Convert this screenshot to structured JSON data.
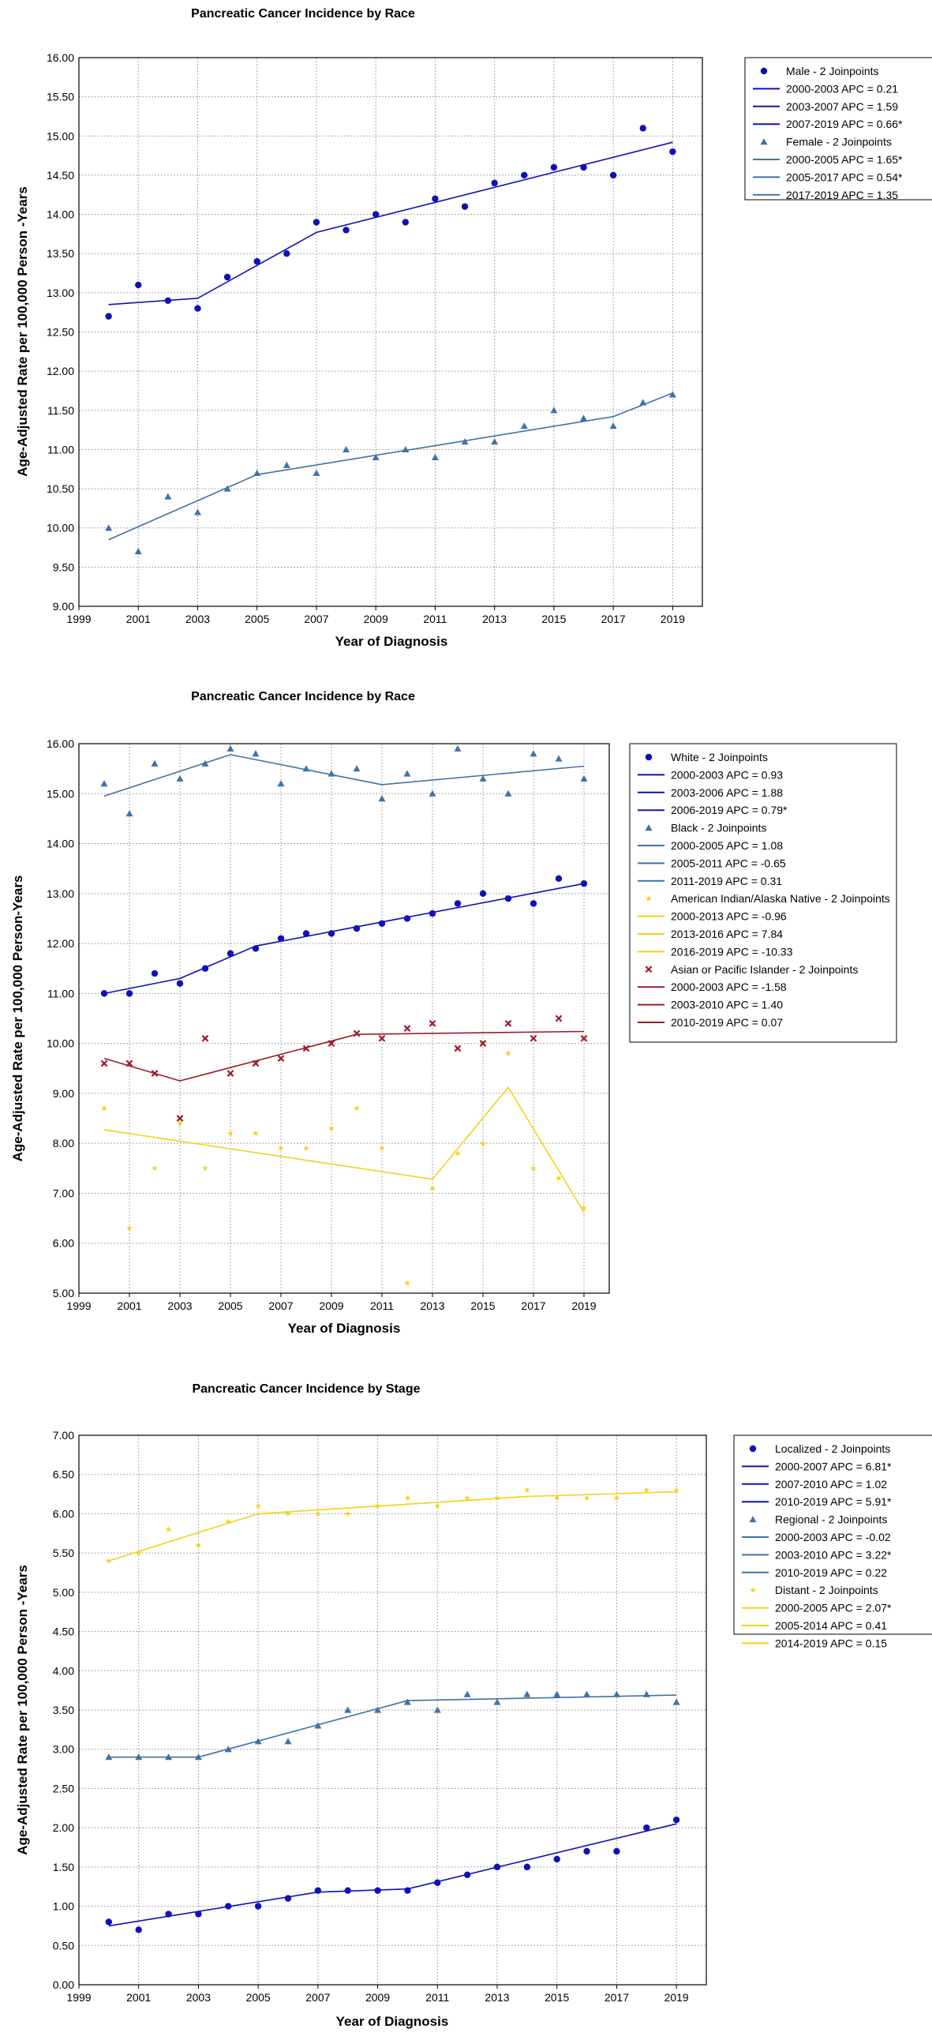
{
  "colors": {
    "navy": "#1010b8",
    "steel": "#3f72a6",
    "gold": "#f2d21b",
    "maroon": "#9b1c2a",
    "grid": "#a8a8a8",
    "axis": "#000000"
  },
  "chart_data": [
    {
      "type": "scatter",
      "title": "Pancreatic Cancer Incidence by Race",
      "xlabel": "Year of Diagnosis",
      "ylabel": "Age-Adjusted Rate per 100,000 Person -Years",
      "xlim": [
        1999,
        2020
      ],
      "ylim": [
        9.0,
        16.0
      ],
      "x_ticks": [
        "1999",
        "2001",
        "2003",
        "2005",
        "2007",
        "2009",
        "2011",
        "2013",
        "2015",
        "2017",
        "2019"
      ],
      "y_ticks": [
        "9.00",
        "9.50",
        "10.00",
        "10.50",
        "11.00",
        "11.50",
        "12.00",
        "12.50",
        "13.00",
        "13.50",
        "14.00",
        "14.50",
        "15.00",
        "15.50",
        "16.00"
      ],
      "grid": true,
      "legend_position": "right",
      "series": [
        {
          "name": "Male - 2 Joinpoints",
          "marker": "circle",
          "color": "#1010b8",
          "x": [
            2000,
            2001,
            2002,
            2003,
            2004,
            2005,
            2006,
            2007,
            2008,
            2009,
            2010,
            2011,
            2012,
            2013,
            2014,
            2015,
            2016,
            2017,
            2018,
            2019
          ],
          "y": [
            12.7,
            13.1,
            12.9,
            12.8,
            13.2,
            13.4,
            13.5,
            13.9,
            13.8,
            14.0,
            13.9,
            14.2,
            14.1,
            14.4,
            14.5,
            14.6,
            14.6,
            14.5,
            15.1,
            14.8
          ],
          "fit": {
            "x": [
              2000,
              2003,
              2007,
              2019
            ],
            "y": [
              12.85,
              12.93,
              13.77,
              14.92
            ]
          },
          "segments": [
            "2000-2003 APC = 0.21",
            "2003-2007 APC = 1.59",
            "2007-2019 APC = 0.66*"
          ]
        },
        {
          "name": "Female - 2 Joinpoints",
          "marker": "triangle",
          "color": "#3f72a6",
          "x": [
            2000,
            2001,
            2002,
            2003,
            2004,
            2005,
            2006,
            2007,
            2008,
            2009,
            2010,
            2011,
            2012,
            2013,
            2014,
            2015,
            2016,
            2017,
            2018,
            2019
          ],
          "y": [
            10.0,
            9.7,
            10.4,
            10.2,
            10.5,
            10.7,
            10.8,
            10.7,
            11.0,
            10.9,
            11.0,
            10.9,
            11.1,
            11.1,
            11.3,
            11.5,
            11.4,
            11.3,
            11.6,
            11.7
          ],
          "fit": {
            "x": [
              2000,
              2005,
              2017,
              2019
            ],
            "y": [
              9.85,
              10.68,
              11.42,
              11.72
            ]
          },
          "segments": [
            "2000-2005 APC = 1.65*",
            "2005-2017 APC = 0.54*",
            "2017-2019 APC = 1.35"
          ]
        }
      ]
    },
    {
      "type": "scatter",
      "title": "Pancreatic Cancer Incidence by Race",
      "xlabel": "Year of Diagnosis",
      "ylabel": "Age-Adjusted Rate per 100,000 Person-Years",
      "xlim": [
        1999,
        2020
      ],
      "ylim": [
        5.0,
        16.0
      ],
      "x_ticks": [
        "1999",
        "2001",
        "2003",
        "2005",
        "2007",
        "2009",
        "2011",
        "2013",
        "2015",
        "2017",
        "2019"
      ],
      "y_ticks": [
        "5.00",
        "6.00",
        "7.00",
        "8.00",
        "9.00",
        "10.00",
        "11.00",
        "12.00",
        "13.00",
        "14.00",
        "15.00",
        "16.00"
      ],
      "grid": true,
      "legend_position": "right",
      "series": [
        {
          "name": "White - 2 Joinpoints",
          "marker": "circle",
          "color": "#1010b8",
          "x": [
            2000,
            2001,
            2002,
            2003,
            2004,
            2005,
            2006,
            2007,
            2008,
            2009,
            2010,
            2011,
            2012,
            2013,
            2014,
            2015,
            2016,
            2017,
            2018,
            2019
          ],
          "y": [
            11.0,
            11.0,
            11.4,
            11.2,
            11.5,
            11.8,
            11.9,
            12.1,
            12.2,
            12.2,
            12.3,
            12.4,
            12.5,
            12.6,
            12.8,
            13.0,
            12.9,
            12.8,
            13.3,
            13.2
          ],
          "fit": {
            "x": [
              2000,
              2003,
              2006,
              2019
            ],
            "y": [
              11.0,
              11.3,
              11.95,
              13.2
            ]
          },
          "segments": [
            "2000-2003 APC = 0.93",
            "2003-2006 APC = 1.88",
            "2006-2019 APC = 0.79*"
          ]
        },
        {
          "name": "Black - 2 Joinpoints",
          "marker": "triangle",
          "color": "#3f72a6",
          "x": [
            2000,
            2001,
            2002,
            2003,
            2004,
            2005,
            2006,
            2007,
            2008,
            2009,
            2010,
            2011,
            2012,
            2013,
            2014,
            2015,
            2016,
            2017,
            2018,
            2019
          ],
          "y": [
            15.2,
            14.6,
            15.6,
            15.3,
            15.6,
            15.9,
            15.8,
            15.2,
            15.5,
            15.4,
            15.5,
            14.9,
            15.4,
            15.0,
            15.9,
            15.3,
            15.0,
            15.8,
            15.7,
            15.3
          ],
          "fit": {
            "x": [
              2000,
              2005,
              2011,
              2019
            ],
            "y": [
              14.95,
              15.78,
              15.18,
              15.55
            ]
          },
          "segments": [
            "2000-2005 APC = 1.08",
            "2005-2011 APC = -0.65",
            "2011-2019 APC = 0.31"
          ]
        },
        {
          "name": "American Indian/Alaska Native - 2 Joinpoints",
          "marker": "star",
          "color": "#f2d21b",
          "x": [
            2000,
            2001,
            2002,
            2003,
            2004,
            2005,
            2006,
            2007,
            2008,
            2009,
            2010,
            2011,
            2012,
            2013,
            2014,
            2015,
            2016,
            2017,
            2018,
            2019
          ],
          "y": [
            8.7,
            6.3,
            7.5,
            8.4,
            7.5,
            8.2,
            8.2,
            7.9,
            7.9,
            8.3,
            8.7,
            7.9,
            5.2,
            7.1,
            7.8,
            8.0,
            9.8,
            7.5,
            7.3,
            6.7
          ],
          "fit": {
            "x": [
              2000,
              2013,
              2016,
              2019
            ],
            "y": [
              8.27,
              7.28,
              9.12,
              6.62
            ]
          },
          "segments": [
            "2000-2013 APC = -0.96",
            "2013-2016 APC = 7.84",
            "2016-2019 APC = -10.33"
          ]
        },
        {
          "name": "Asian or Pacific Islander - 2 Joinpoints",
          "marker": "x",
          "color": "#9b1c2a",
          "x": [
            2000,
            2001,
            2002,
            2003,
            2004,
            2005,
            2006,
            2007,
            2008,
            2009,
            2010,
            2011,
            2012,
            2013,
            2014,
            2015,
            2016,
            2017,
            2018,
            2019
          ],
          "y": [
            9.6,
            9.6,
            9.4,
            8.5,
            10.1,
            9.4,
            9.6,
            9.7,
            9.9,
            10.0,
            10.2,
            10.1,
            10.3,
            10.4,
            9.9,
            10.0,
            10.4,
            10.1,
            10.5,
            10.1
          ],
          "fit": {
            "x": [
              2000,
              2003,
              2010,
              2019
            ],
            "y": [
              9.7,
              9.25,
              10.18,
              10.24
            ]
          },
          "segments": [
            "2000-2003 APC = -1.58",
            "2003-2010 APC = 1.40",
            "2010-2019 APC = 0.07"
          ]
        }
      ]
    },
    {
      "type": "scatter",
      "title": "Pancreatic Cancer Incidence by Stage",
      "xlabel": "Year of Diagnosis",
      "ylabel": "Age-Adjusted Rate per 100,000 Person -Years",
      "xlim": [
        1999,
        2020
      ],
      "ylim": [
        0.0,
        7.0
      ],
      "x_ticks": [
        "1999",
        "2001",
        "2003",
        "2005",
        "2007",
        "2009",
        "2011",
        "2013",
        "2015",
        "2017",
        "2019"
      ],
      "y_ticks": [
        "0.00",
        "0.50",
        "1.00",
        "1.50",
        "2.00",
        "2.50",
        "3.00",
        "3.50",
        "4.00",
        "4.50",
        "5.00",
        "5.50",
        "6.00",
        "6.50",
        "7.00"
      ],
      "grid": true,
      "legend_position": "right",
      "series": [
        {
          "name": "Localized - 2 Joinpoints",
          "marker": "circle",
          "color": "#1010b8",
          "x": [
            2000,
            2001,
            2002,
            2003,
            2004,
            2005,
            2006,
            2007,
            2008,
            2009,
            2010,
            2011,
            2012,
            2013,
            2014,
            2015,
            2016,
            2017,
            2018,
            2019
          ],
          "y": [
            0.8,
            0.7,
            0.9,
            0.9,
            1.0,
            1.0,
            1.1,
            1.2,
            1.2,
            1.2,
            1.2,
            1.3,
            1.4,
            1.5,
            1.5,
            1.6,
            1.7,
            1.7,
            2.0,
            2.1
          ],
          "fit": {
            "x": [
              2000,
              2007,
              2010,
              2019
            ],
            "y": [
              0.75,
              1.18,
              1.22,
              2.05
            ]
          },
          "segments": [
            "2000-2007 APC = 6.81*",
            "2007-2010 APC = 1.02",
            "2010-2019 APC = 5.91*"
          ]
        },
        {
          "name": "Regional - 2 Joinpoints",
          "marker": "triangle",
          "color": "#3f72a6",
          "x": [
            2000,
            2001,
            2002,
            2003,
            2004,
            2005,
            2006,
            2007,
            2008,
            2009,
            2010,
            2011,
            2012,
            2013,
            2014,
            2015,
            2016,
            2017,
            2018,
            2019
          ],
          "y": [
            2.9,
            2.9,
            2.9,
            2.9,
            3.0,
            3.1,
            3.1,
            3.3,
            3.5,
            3.5,
            3.6,
            3.5,
            3.7,
            3.6,
            3.7,
            3.7,
            3.7,
            3.7,
            3.7,
            3.6
          ],
          "fit": {
            "x": [
              2000,
              2003,
              2010,
              2019
            ],
            "y": [
              2.9,
              2.9,
              3.62,
              3.69
            ]
          },
          "segments": [
            "2000-2003 APC = -0.02",
            "2003-2010 APC = 3.22*",
            "2010-2019 APC = 0.22"
          ]
        },
        {
          "name": "Distant - 2 Joinpoints",
          "marker": "star",
          "color": "#f2d21b",
          "x": [
            2000,
            2001,
            2002,
            2003,
            2004,
            2005,
            2006,
            2007,
            2008,
            2009,
            2010,
            2011,
            2012,
            2013,
            2014,
            2015,
            2016,
            2017,
            2018,
            2019
          ],
          "y": [
            5.4,
            5.5,
            5.8,
            5.6,
            5.9,
            6.1,
            6.0,
            6.0,
            6.0,
            6.1,
            6.2,
            6.1,
            6.2,
            6.2,
            6.3,
            6.2,
            6.2,
            6.2,
            6.3,
            6.3
          ],
          "fit": {
            "x": [
              2000,
              2005,
              2014,
              2019
            ],
            "y": [
              5.4,
              6.0,
              6.22,
              6.28
            ]
          },
          "segments": [
            "2000-2005 APC = 2.07*",
            "2005-2014 APC = 0.41",
            "2014-2019 APC = 0.15"
          ]
        }
      ]
    }
  ]
}
